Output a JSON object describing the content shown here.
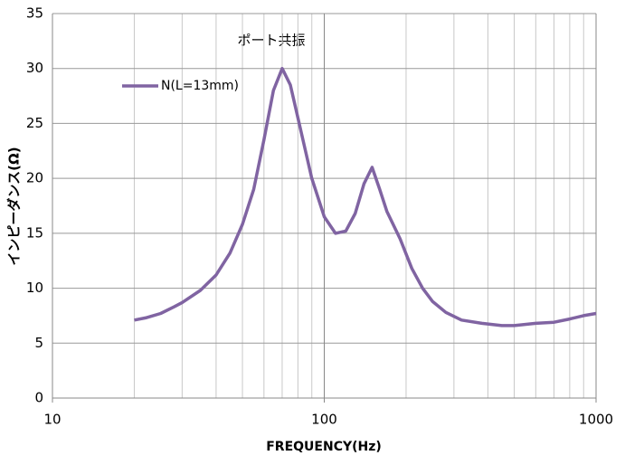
{
  "chart_data": {
    "type": "line",
    "xscale": "log",
    "annotation": "ポート共振",
    "x_label": "FREQUENCY(Hz)",
    "y_label": "インピーダンス(Ω)",
    "x": [
      20,
      22,
      25,
      28,
      30,
      35,
      40,
      45,
      50,
      55,
      60,
      65,
      70,
      75,
      80,
      90,
      100,
      110,
      120,
      130,
      140,
      150,
      160,
      170,
      190,
      210,
      230,
      250,
      280,
      320,
      380,
      450,
      500,
      600,
      700,
      800,
      900,
      1000
    ],
    "series": [
      {
        "name": "N(L=13mm)",
        "color": "#8064a2",
        "values": [
          7.1,
          7.3,
          7.7,
          8.3,
          8.7,
          9.8,
          11.2,
          13.2,
          15.8,
          19.0,
          23.5,
          28.0,
          30.0,
          28.5,
          25.5,
          20.0,
          16.5,
          15.0,
          15.2,
          16.8,
          19.5,
          21.0,
          19.0,
          17.0,
          14.5,
          11.8,
          10.0,
          8.8,
          7.8,
          7.1,
          6.8,
          6.6,
          6.6,
          6.8,
          6.9,
          7.2,
          7.5,
          7.7
        ]
      }
    ],
    "xlim": [
      10,
      1000
    ],
    "xticks": [
      10,
      100,
      1000
    ],
    "x_minor_ticks": [
      20,
      30,
      40,
      50,
      60,
      70,
      80,
      90,
      200,
      300,
      400,
      500,
      600,
      700,
      800,
      900
    ],
    "ylim": [
      0,
      35
    ],
    "yticks": [
      0,
      5,
      10,
      15,
      20,
      25,
      30,
      35
    ],
    "grid": true,
    "legend": "top-left"
  }
}
